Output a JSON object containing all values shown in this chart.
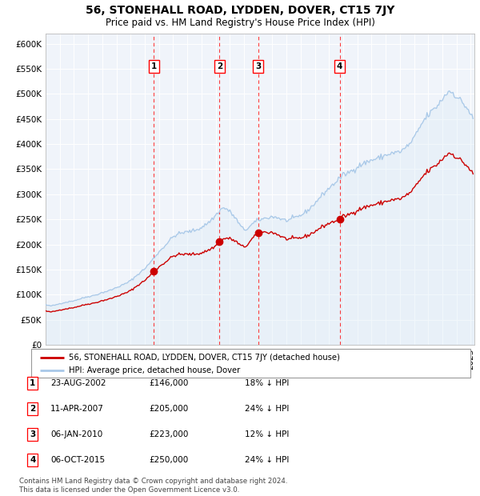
{
  "title": "56, STONEHALL ROAD, LYDDEN, DOVER, CT15 7JY",
  "subtitle": "Price paid vs. HM Land Registry's House Price Index (HPI)",
  "ylim": [
    0,
    620000
  ],
  "yticks": [
    0,
    50000,
    100000,
    150000,
    200000,
    250000,
    300000,
    350000,
    400000,
    450000,
    500000,
    550000,
    600000
  ],
  "ytick_labels": [
    "£0",
    "£50K",
    "£100K",
    "£150K",
    "£200K",
    "£250K",
    "£300K",
    "£350K",
    "£400K",
    "£450K",
    "£500K",
    "£550K",
    "£600K"
  ],
  "hpi_color": "#a8c8e8",
  "hpi_fill_color": "#dbeaf7",
  "price_color": "#cc0000",
  "bg_color": "#e8f0f8",
  "plot_bg": "#f0f4fa",
  "sale_times": [
    2002.646,
    2007.274,
    2010.014,
    2015.756
  ],
  "sale_prices": [
    146000,
    205000,
    223000,
    250000
  ],
  "sale_labels": [
    "1",
    "2",
    "3",
    "4"
  ],
  "legend_line1": "56, STONEHALL ROAD, LYDDEN, DOVER, CT15 7JY (detached house)",
  "legend_line2": "HPI: Average price, detached house, Dover",
  "table_rows": [
    {
      "num": "1",
      "date": "23-AUG-2002",
      "price": "£146,000",
      "pct": "18% ↓ HPI"
    },
    {
      "num": "2",
      "date": "11-APR-2007",
      "price": "£205,000",
      "pct": "24% ↓ HPI"
    },
    {
      "num": "3",
      "date": "06-JAN-2010",
      "price": "£223,000",
      "pct": "12% ↓ HPI"
    },
    {
      "num": "4",
      "date": "06-OCT-2015",
      "price": "£250,000",
      "pct": "24% ↓ HPI"
    }
  ],
  "footnote": "Contains HM Land Registry data © Crown copyright and database right 2024.\nThis data is licensed under the Open Government Licence v3.0."
}
